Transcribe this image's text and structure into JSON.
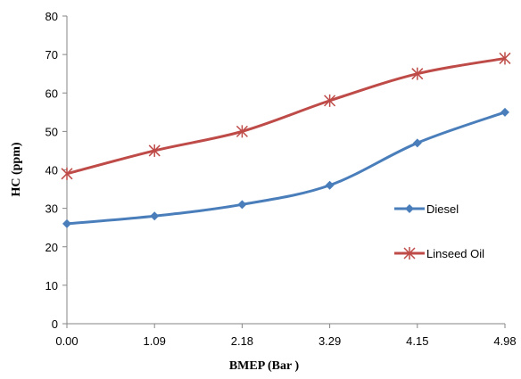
{
  "chart_data": {
    "type": "line",
    "title": "",
    "xlabel": "BMEP  (Bar )",
    "ylabel": "HC (ppm)",
    "categories": [
      "0.00",
      "1.09",
      "2.18",
      "3.29",
      "4.15",
      "4.98"
    ],
    "ylim": [
      0,
      80
    ],
    "yticks": [
      "0",
      "10",
      "20",
      "30",
      "40",
      "50",
      "60",
      "70",
      "80"
    ],
    "grid": false,
    "legend_position": "right",
    "series": [
      {
        "name": "Diesel",
        "values": [
          26,
          28,
          31,
          36,
          47,
          55
        ],
        "color": "#4a7ebb",
        "marker": "diamond"
      },
      {
        "name": "Linseed Oil",
        "values": [
          39,
          45,
          50,
          58,
          65,
          69
        ],
        "color": "#be4b48",
        "marker": "asterisk"
      }
    ]
  }
}
